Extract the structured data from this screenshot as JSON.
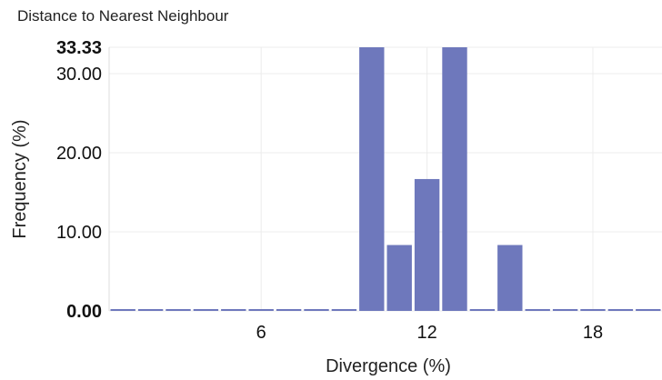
{
  "chart_data": {
    "type": "bar",
    "title": "Distance to Nearest Neighbour",
    "xlabel": "Divergence (%)",
    "ylabel": "Frequency (%)",
    "x": [
      1,
      2,
      3,
      4,
      5,
      6,
      7,
      8,
      9,
      10,
      11,
      12,
      13,
      14,
      15,
      16,
      17,
      18,
      19,
      20
    ],
    "values": [
      0,
      0,
      0,
      0,
      0,
      0,
      0,
      0,
      0,
      33.33,
      8.33,
      16.67,
      33.33,
      0,
      8.33,
      0,
      0,
      0,
      0,
      0
    ],
    "xticks": [
      6,
      12,
      18
    ],
    "yticks": [
      0,
      10,
      20,
      30,
      33.33
    ],
    "ytick_labels": [
      "0.00",
      "10.00",
      "20.00",
      "30.00",
      "33.33"
    ],
    "xtick_labels": [
      "6",
      "12",
      "18"
    ],
    "ylim": [
      0,
      33.33
    ],
    "xlim": [
      0.5,
      20.5
    ],
    "bar_color": "#6e78bc",
    "grid": true
  }
}
